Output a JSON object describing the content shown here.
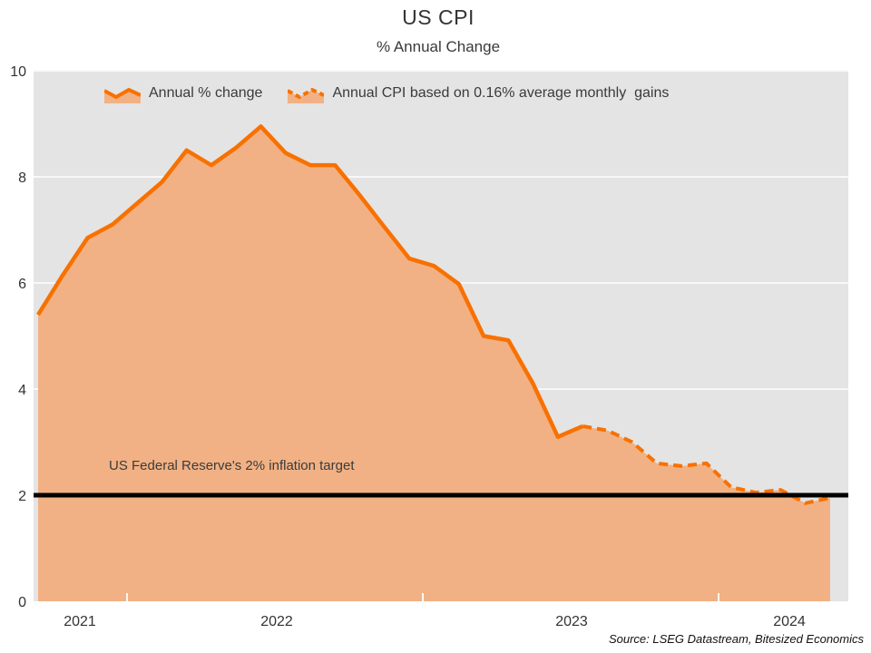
{
  "title": "US CPI",
  "subtitle": "% Annual Change",
  "legend": [
    {
      "label": "Annual % change",
      "line_style": "solid"
    },
    {
      "label": "Annual CPI based on 0.16% average monthly  gains",
      "line_style": "dashed"
    }
  ],
  "annotation": "US Federal Reserve's 2% inflation target",
  "source": "Source: LSEG Datastream, Bitesized Economics",
  "colors": {
    "line_orange": "#F87100",
    "area_fill": "#F1B184",
    "plot_background": "#E4E4E4",
    "gridline": "#F8F8F8",
    "target_line": "#000000",
    "text": "#333333"
  },
  "chart_data": {
    "type": "area",
    "title": "US CPI",
    "subtitle": "% Annual Change",
    "ylim": [
      0,
      10
    ],
    "yticks": [
      0,
      2,
      4,
      6,
      8,
      10
    ],
    "x_axis": {
      "tick_labels": [
        "2021",
        "2022",
        "2023",
        "2024"
      ],
      "frequency": "monthly"
    },
    "grid": "horizontal-white-on-gray",
    "legend_position": "top-left-inside",
    "target_line": {
      "value": 2,
      "label": "US Federal Reserve's 2% inflation target"
    },
    "series": [
      {
        "name": "Annual % change",
        "line_style": "solid",
        "start_month": "2021-09",
        "start_index": 0,
        "values": [
          5.4,
          6.15,
          6.85,
          7.1,
          7.5,
          7.9,
          8.5,
          8.22,
          8.55,
          8.95,
          8.45,
          8.22,
          8.22,
          7.65,
          7.05,
          6.46,
          6.32,
          5.98,
          5.0,
          4.92,
          4.1,
          3.1,
          3.3
        ]
      },
      {
        "name": "Annual CPI based on 0.16% average monthly gains",
        "line_style": "dashed",
        "start_month": "2023-07",
        "start_index": 22,
        "values": [
          3.3,
          3.22,
          3.0,
          2.6,
          2.55,
          2.6,
          2.15,
          2.05,
          2.1,
          1.85,
          1.95
        ]
      }
    ]
  }
}
